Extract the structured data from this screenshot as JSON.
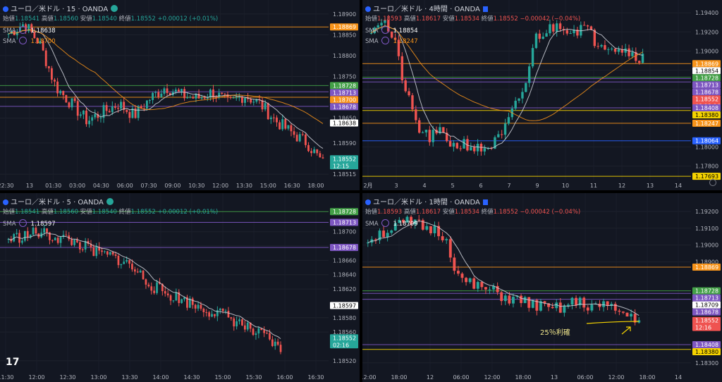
{
  "panels": [
    {
      "id": "p15",
      "title": "ユーロ／米ドル · 15 · OANDA",
      "ohlc": {
        "open_label": "始値",
        "open": "1.18541",
        "high_label": "高値",
        "high": "1.18560",
        "low_label": "安値",
        "low": "1.18540",
        "close_label": "終値",
        "close": "1.18552",
        "change": "+0.00012 (+0.01%)"
      },
      "sma": [
        {
          "label": "SMA",
          "value": "1.18638",
          "color": "#ffffff"
        },
        {
          "label": "SMA",
          "value": "1.18700",
          "color": "#f7931a"
        }
      ],
      "colors": {
        "up": "#26a69a",
        "down": "#ef5350"
      }
    },
    {
      "id": "p4h",
      "title": "ユーロ／米ドル · 4時間 · OANDA",
      "ohlc": {
        "open_label": "始値",
        "open": "1.18593",
        "high_label": "高値",
        "high": "1.18617",
        "low_label": "安値",
        "low": "1.18534",
        "close_label": "終値",
        "close": "1.18552",
        "change": "−0.00042 (−0.04%)"
      },
      "sma": [
        {
          "label": "SMA",
          "value": "1.18854",
          "color": "#ffffff"
        },
        {
          "label": "SMA",
          "value": "1.18247",
          "color": "#f7931a"
        }
      ]
    },
    {
      "id": "p5",
      "title": "ユーロ／米ドル · 5 · OANDA",
      "ohlc": {
        "open_label": "始値",
        "open": "1.18541",
        "high_label": "高値",
        "high": "1.18560",
        "low_label": "安値",
        "low": "1.18540",
        "close_label": "終値",
        "close": "1.18552",
        "change": "+0.00012 (+0.01%)"
      },
      "sma": [
        {
          "label": "SMA",
          "value": "1.18597",
          "color": "#ffffff"
        }
      ]
    },
    {
      "id": "p1h",
      "title": "ユーロ／米ドル · 1時間 · OANDA",
      "ohlc": {
        "open_label": "始値",
        "open": "1.18593",
        "high_label": "高値",
        "high": "1.18617",
        "low_label": "安値",
        "low": "1.18534",
        "close_label": "終値",
        "close": "1.18552",
        "change": "−0.00042 (−0.04%)"
      },
      "sma": [
        {
          "label": "SMA",
          "value": "1.18709",
          "color": "#ffffff"
        }
      ],
      "annotation": "25％利確"
    }
  ],
  "chart_data": [
    {
      "type": "candlestick",
      "panel": "p15",
      "timeframe": "15",
      "ylim": [
        1.185,
        1.1891
      ],
      "y_ticks": [
        "1.18900",
        "1.18850",
        "1.18800",
        "1.18750",
        "1.18650",
        "1.18590",
        "1.18515"
      ],
      "x_ticks": [
        "22:30",
        "13",
        "01:30",
        "03:00",
        "04:30",
        "06:00",
        "07:30",
        "09:00",
        "10:30",
        "12:00",
        "13:30",
        "15:00",
        "16:30",
        "18:00"
      ],
      "price_labels": [
        {
          "price": "1.18869",
          "color": "#f7931a"
        },
        {
          "price": "1.18728",
          "color": "#43a047"
        },
        {
          "price": "1.18713",
          "color": "#7e57c2"
        },
        {
          "price": "1.18700",
          "color": "#f7931a"
        },
        {
          "price": "1.18678",
          "color": "#7e57c2"
        },
        {
          "price": "1.18638",
          "color": "#ffffff"
        },
        {
          "price": "1.18552",
          "color": "#26a69a",
          "countdown": "12:15"
        }
      ]
    },
    {
      "type": "candlestick",
      "panel": "p4h",
      "timeframe": "240",
      "ylim": [
        1.1765,
        1.1943
      ],
      "y_ticks": [
        "1.19400",
        "1.19200",
        "1.19000",
        "1.18800",
        "1.18600",
        "1.18000",
        "1.17800"
      ],
      "x_ticks": [
        "2月",
        "3",
        "4",
        "5",
        "6",
        "7",
        "9",
        "10",
        "11",
        "12",
        "13",
        "14"
      ],
      "price_labels": [
        {
          "price": "1.18869",
          "color": "#f7931a"
        },
        {
          "price": "1.18854",
          "color": "#ffffff"
        },
        {
          "price": "1.18728",
          "color": "#43a047"
        },
        {
          "price": "1.18713",
          "color": "#7e57c2"
        },
        {
          "price": "1.18678",
          "color": "#7e57c2"
        },
        {
          "price": "1.18552",
          "color": "#ef5350",
          "countdown": "03:12:16"
        },
        {
          "price": "1.18408",
          "color": "#7e57c2"
        },
        {
          "price": "1.18380",
          "color": "#f5d300"
        },
        {
          "price": "1.18247",
          "color": "#f7931a"
        },
        {
          "price": "1.18064",
          "color": "#2962ff"
        },
        {
          "price": "1.17693",
          "color": "#f5d300"
        }
      ]
    },
    {
      "type": "candlestick",
      "panel": "p5",
      "timeframe": "5",
      "ylim": [
        1.1851,
        1.1874
      ],
      "y_ticks": [
        "1.18700",
        "1.18680",
        "1.18660",
        "1.18640",
        "1.18620",
        "1.18580",
        "1.18560",
        "1.18520"
      ],
      "x_ticks": [
        "11:30",
        "12:00",
        "12:30",
        "13:00",
        "13:30",
        "14:00",
        "14:30",
        "15:00",
        "15:30",
        "16:00",
        "16:30"
      ],
      "price_labels": [
        {
          "price": "1.18728",
          "color": "#43a047"
        },
        {
          "price": "1.18713",
          "color": "#7e57c2"
        },
        {
          "price": "1.18678",
          "color": "#7e57c2"
        },
        {
          "price": "1.18597",
          "color": "#ffffff"
        },
        {
          "price": "1.18552",
          "color": "#26a69a",
          "countdown": "02:16"
        }
      ]
    },
    {
      "type": "candlestick",
      "panel": "p1h",
      "timeframe": "60",
      "ylim": [
        1.1827,
        1.1925
      ],
      "y_ticks": [
        "1.19200",
        "1.19100",
        "1.19000",
        "1.18900",
        "1.18600",
        "1.18300"
      ],
      "x_ticks": [
        "12:00",
        "18:00",
        "12",
        "06:00",
        "12:00",
        "18:00",
        "13",
        "06:00",
        "12:00",
        "18:00",
        "14"
      ],
      "price_labels": [
        {
          "price": "1.18869",
          "color": "#f7931a"
        },
        {
          "price": "1.18728",
          "color": "#43a047"
        },
        {
          "price": "1.18713",
          "color": "#7e57c2"
        },
        {
          "price": "1.18709",
          "color": "#ffffff"
        },
        {
          "price": "1.18678",
          "color": "#7e57c2"
        },
        {
          "price": "1.18552",
          "color": "#ef5350",
          "countdown": "12:16"
        },
        {
          "price": "1.18408",
          "color": "#7e57c2"
        },
        {
          "price": "1.18380",
          "color": "#f5d300"
        }
      ]
    }
  ]
}
